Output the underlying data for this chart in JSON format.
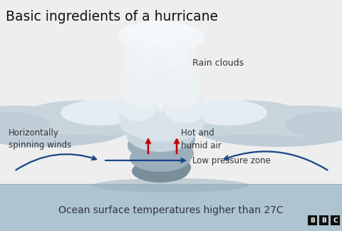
{
  "title": "Basic ingredients of a hurricane",
  "title_fontsize": 13.5,
  "title_color": "#111111",
  "bg_color": "#eeeeee",
  "ocean_bg_color": "#aec4d0",
  "ocean_text": "Ocean surface temperatures higher than 27C",
  "ocean_text_color": "#333344",
  "ocean_text_fontsize": 10,
  "label_rain_clouds": "Rain clouds",
  "label_hot_humid": "Hot and\nhumid air",
  "label_low_pressure": "Low pressure zone",
  "label_spinning": "Horizontally\nspinning winds",
  "label_color": "#333333",
  "arrow_color_red": "#bb0000",
  "arrow_color_blue": "#1a4488",
  "bbc_bg": "#111111",
  "bbc_text_color": "#ffffff",
  "cloud_colors": {
    "light": "#c8d5dd",
    "mid": "#9aaebb",
    "dark": "#7a8e9a",
    "white": "#d8e2e8",
    "bright": "#e5edf2",
    "top": "#ecf1f4",
    "wing": "#c0cdd6"
  }
}
